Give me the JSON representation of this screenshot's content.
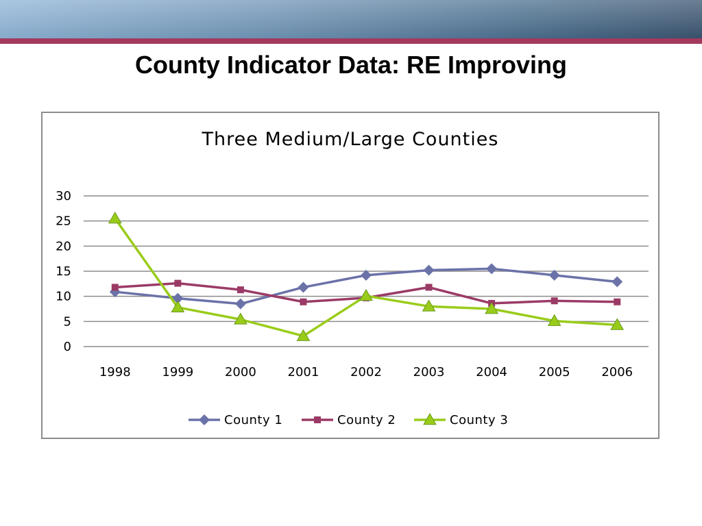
{
  "slide": {
    "title": "County Indicator Data: RE Improving"
  },
  "colors": {
    "band_start": "#8fb4d6",
    "band_end": "#3a5470",
    "accent_stripe": "#a3395f",
    "gridline": "#8c8c8c"
  },
  "chart_data": {
    "type": "line",
    "title": "Three Medium/Large Counties",
    "xlabel": "",
    "ylabel": "",
    "categories": [
      "1998",
      "1999",
      "2000",
      "2001",
      "2002",
      "2003",
      "2004",
      "2005",
      "2006"
    ],
    "ylim": [
      0,
      30
    ],
    "yticks": [
      0,
      5,
      10,
      15,
      20,
      25,
      30
    ],
    "grid": true,
    "legend_position": "bottom",
    "series": [
      {
        "name": "County 1",
        "color": "#6b72a8",
        "marker": "diamond",
        "values": [
          10.9,
          9.6,
          8.5,
          11.8,
          14.2,
          15.2,
          15.5,
          14.2,
          12.9
        ]
      },
      {
        "name": "County 2",
        "color": "#9b3a66",
        "marker": "square",
        "values": [
          11.8,
          12.6,
          11.3,
          8.9,
          9.7,
          11.8,
          8.6,
          9.1,
          8.9
        ]
      },
      {
        "name": "County 3",
        "color": "#99cc1a",
        "marker": "triangle",
        "values": [
          25.5,
          7.8,
          5.4,
          2.1,
          10.1,
          8.0,
          7.5,
          5.1,
          4.3
        ]
      }
    ]
  }
}
